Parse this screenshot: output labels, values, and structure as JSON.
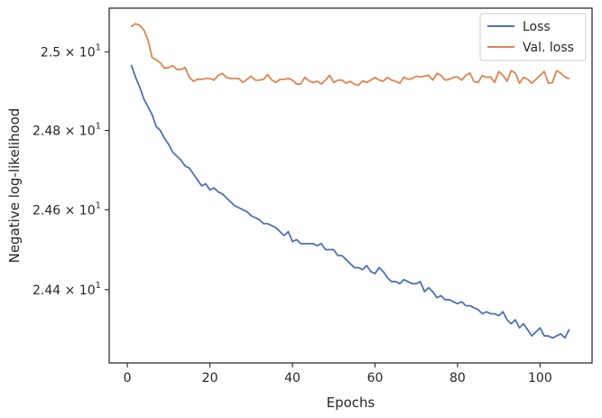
{
  "chart_data": {
    "type": "line",
    "xlabel": "Epochs",
    "ylabel": "Negative log-likelihood",
    "xlim": [
      -4.4,
      112.6
    ],
    "ylim": [
      24.218,
      25.112
    ],
    "y_scale": "log",
    "x_ticks": [
      0,
      20,
      40,
      60,
      80,
      100
    ],
    "x_tick_labels": [
      "0",
      "20",
      "40",
      "60",
      "80",
      "100"
    ],
    "y_ticks": [
      24.4,
      24.6,
      24.8,
      25.0
    ],
    "y_tick_labels": [
      {
        "mantissa": "2.44",
        "base": "10",
        "exp": "1"
      },
      {
        "mantissa": "2.46",
        "base": "10",
        "exp": "1"
      },
      {
        "mantissa": "2.48",
        "base": "10",
        "exp": "1"
      },
      {
        "mantissa": "2.5",
        "base": "10",
        "exp": "1"
      }
    ],
    "times_sign": "×",
    "grid": false,
    "legend_position": "top-right",
    "series": [
      {
        "name": "Loss",
        "color": "#4c72b0",
        "x": [
          1,
          2,
          3,
          4,
          5,
          6,
          7,
          8,
          9,
          10,
          11,
          12,
          13,
          14,
          15,
          16,
          17,
          18,
          19,
          20,
          21,
          22,
          23,
          24,
          25,
          26,
          27,
          28,
          29,
          30,
          31,
          32,
          33,
          34,
          35,
          36,
          37,
          38,
          39,
          40,
          41,
          42,
          43,
          44,
          45,
          46,
          47,
          48,
          49,
          50,
          51,
          52,
          53,
          54,
          55,
          56,
          57,
          58,
          59,
          60,
          61,
          62,
          63,
          64,
          65,
          66,
          67,
          68,
          69,
          70,
          71,
          72,
          73,
          74,
          75,
          76,
          77,
          78,
          79,
          80,
          81,
          82,
          83,
          84,
          85,
          86,
          87,
          88,
          89,
          90,
          91,
          92,
          93,
          94,
          95,
          96,
          97,
          98,
          99,
          100,
          101,
          102,
          103,
          104,
          105,
          106,
          107
        ],
        "y": [
          24.965,
          24.935,
          24.91,
          24.88,
          24.86,
          24.84,
          24.81,
          24.8,
          24.78,
          24.765,
          24.745,
          24.735,
          24.725,
          24.71,
          24.705,
          24.69,
          24.675,
          24.66,
          24.665,
          24.65,
          24.655,
          24.645,
          24.64,
          24.63,
          24.62,
          24.61,
          24.605,
          24.6,
          24.595,
          24.585,
          24.58,
          24.575,
          24.565,
          24.565,
          24.56,
          24.555,
          24.545,
          24.535,
          24.545,
          24.52,
          24.525,
          24.515,
          24.515,
          24.515,
          24.515,
          24.51,
          24.515,
          24.5,
          24.5,
          24.5,
          24.485,
          24.485,
          24.475,
          24.465,
          24.455,
          24.455,
          24.45,
          24.46,
          24.445,
          24.44,
          24.455,
          24.445,
          24.43,
          24.42,
          24.42,
          24.415,
          24.425,
          24.42,
          24.415,
          24.415,
          24.42,
          24.395,
          24.405,
          24.395,
          24.38,
          24.385,
          24.375,
          24.375,
          24.37,
          24.365,
          24.37,
          24.36,
          24.36,
          24.355,
          24.35,
          24.34,
          24.345,
          24.34,
          24.34,
          24.335,
          24.345,
          24.325,
          24.315,
          24.325,
          24.305,
          24.315,
          24.3,
          24.285,
          24.295,
          24.305,
          24.285,
          24.285,
          24.28,
          24.285,
          24.29,
          24.28,
          24.3
        ],
        "y_precision": "estimated"
      },
      {
        "name": "Val. loss",
        "color": "#dd8452",
        "x": [
          1,
          2,
          3,
          4,
          5,
          6,
          7,
          8,
          9,
          10,
          11,
          12,
          13,
          14,
          15,
          16,
          17,
          18,
          19,
          20,
          21,
          22,
          23,
          24,
          25,
          26,
          27,
          28,
          29,
          30,
          31,
          32,
          33,
          34,
          35,
          36,
          37,
          38,
          39,
          40,
          41,
          42,
          43,
          44,
          45,
          46,
          47,
          48,
          49,
          50,
          51,
          52,
          53,
          54,
          55,
          56,
          57,
          58,
          59,
          60,
          61,
          62,
          63,
          64,
          65,
          66,
          67,
          68,
          69,
          70,
          71,
          72,
          73,
          74,
          75,
          76,
          77,
          78,
          79,
          80,
          81,
          82,
          83,
          84,
          85,
          86,
          87,
          88,
          89,
          90,
          91,
          92,
          93,
          94,
          95,
          96,
          97,
          98,
          99,
          100,
          101,
          102,
          103,
          104,
          105,
          106,
          107
        ],
        "y": [
          25.065,
          25.072,
          25.068,
          25.056,
          25.03,
          24.985,
          24.98,
          24.972,
          24.958,
          24.96,
          24.965,
          24.955,
          24.955,
          24.96,
          24.935,
          24.925,
          24.93,
          24.93,
          24.932,
          24.932,
          24.928,
          24.94,
          24.945,
          24.935,
          24.932,
          24.932,
          24.932,
          24.922,
          24.93,
          24.938,
          24.928,
          24.928,
          24.93,
          24.942,
          24.928,
          24.922,
          24.93,
          24.93,
          24.932,
          24.928,
          24.918,
          24.918,
          24.935,
          24.926,
          24.922,
          24.925,
          24.918,
          24.928,
          24.94,
          24.922,
          24.928,
          24.928,
          24.92,
          24.925,
          24.918,
          24.915,
          24.926,
          24.922,
          24.928,
          24.935,
          24.928,
          24.925,
          24.935,
          24.928,
          24.925,
          24.92,
          24.935,
          24.93,
          24.932,
          24.938,
          24.936,
          24.938,
          24.94,
          24.928,
          24.945,
          24.94,
          24.928,
          24.93,
          24.935,
          24.936,
          24.928,
          24.94,
          24.946,
          24.924,
          24.922,
          24.94,
          24.935,
          24.936,
          24.922,
          24.95,
          24.94,
          24.925,
          24.952,
          24.946,
          24.92,
          24.935,
          24.93,
          24.92,
          24.93,
          24.94,
          24.95,
          24.92,
          24.922,
          24.952,
          24.946,
          24.936,
          24.932
        ],
        "y_precision": "estimated"
      }
    ]
  }
}
